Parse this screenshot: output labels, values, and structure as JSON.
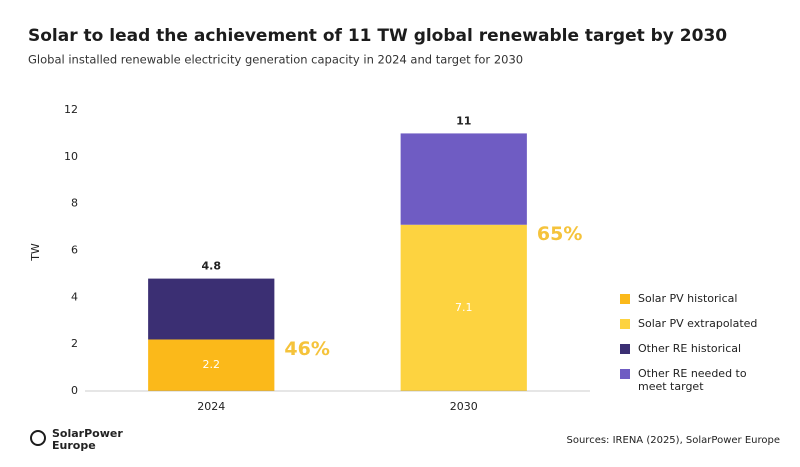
{
  "chart_data": {
    "type": "stacked-bar",
    "title": "Solar to lead the achievement of 11 TW global renewable target by 2030",
    "subtitle": "Global installed renewable electricity generation capacity in 2024 and target for 2030",
    "y_label": "TW",
    "categories": [
      "2024",
      "2030"
    ],
    "series": [
      {
        "name": "Solar PV historical",
        "color": "#fbb91a",
        "values": [
          2.2,
          null
        ]
      },
      {
        "name": "Solar PV extrapolated",
        "color": "#fdd340",
        "values": [
          null,
          7.1
        ]
      },
      {
        "name": "Other RE historical",
        "color": "#3b2f73",
        "values": [
          2.6,
          null
        ]
      },
      {
        "name": "Other RE needed to meet target",
        "color": "#6f5cc3",
        "values": [
          null,
          3.9
        ]
      }
    ],
    "labeled_series": [
      0,
      1
    ],
    "totals": [
      4.8,
      11
    ],
    "shares": [
      {
        "value": 46,
        "label": "46%"
      },
      {
        "value": 65,
        "label": "65%"
      }
    ],
    "share_color": "#f5c33b",
    "ylim": [
      0,
      12
    ],
    "yticks": [
      0,
      2,
      4,
      6,
      8,
      10,
      12
    ],
    "grid": false,
    "legend": "right",
    "source": "Sources: IRENA (2025), SolarPower Europe"
  },
  "branding": {
    "logo": [
      "SolarPower",
      "Europe"
    ]
  }
}
